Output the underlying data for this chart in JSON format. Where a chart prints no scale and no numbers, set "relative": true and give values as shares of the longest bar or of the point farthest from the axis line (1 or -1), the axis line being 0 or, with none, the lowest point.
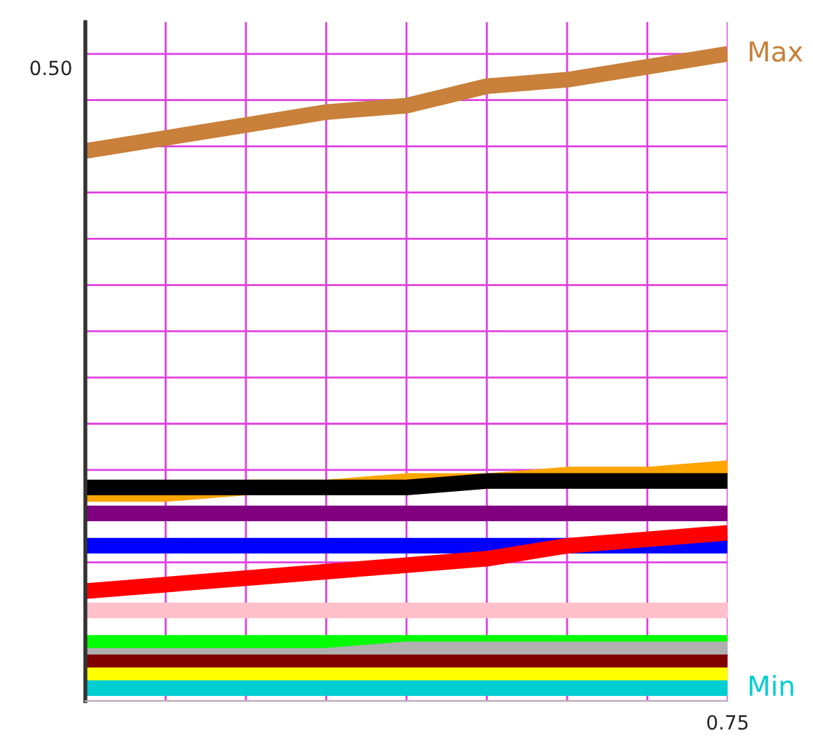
{
  "chart_data": {
    "type": "line",
    "relative": true,
    "grid": true,
    "tick_labels": false,
    "marker": "none",
    "line_style": "solid",
    "categories": [
      null,
      null,
      null,
      null,
      null,
      null,
      null,
      null,
      null
    ],
    "annotations": [
      "0.50",
      "0.75"
    ],
    "series": [
      {
        "name": "Max",
        "color": "#c8803a",
        "values": [
          0.85,
          0.87,
          0.89,
          0.91,
          0.92,
          0.95,
          0.96,
          0.98,
          1.0
        ]
      },
      {
        "color": "#ffa500",
        "values": [
          0.32,
          0.32,
          0.33,
          0.33,
          0.34,
          0.34,
          0.35,
          0.35,
          0.36
        ]
      },
      {
        "color": "#000000",
        "values": [
          0.33,
          0.33,
          0.33,
          0.33,
          0.33,
          0.34,
          0.34,
          0.34,
          0.34
        ]
      },
      {
        "color": "#800080",
        "values": [
          0.29,
          0.29,
          0.29,
          0.29,
          0.29,
          0.29,
          0.29,
          0.29,
          0.29
        ]
      },
      {
        "color": "#0000ff",
        "values": [
          0.24,
          0.24,
          0.24,
          0.24,
          0.24,
          0.24,
          0.24,
          0.24,
          0.24
        ]
      },
      {
        "color": "#ff0000",
        "values": [
          0.17,
          0.18,
          0.19,
          0.2,
          0.21,
          0.22,
          0.24,
          0.25,
          0.26
        ]
      },
      {
        "color": "#ffc0cb",
        "values": [
          0.14,
          0.14,
          0.14,
          0.14,
          0.14,
          0.14,
          0.14,
          0.14,
          0.14
        ]
      },
      {
        "color": "#00ff00",
        "values": [
          0.09,
          0.09,
          0.09,
          0.09,
          0.09,
          0.09,
          0.09,
          0.09,
          0.09
        ]
      },
      {
        "color": "#b0b0b0",
        "values": [
          0.07,
          0.07,
          0.07,
          0.07,
          0.08,
          0.08,
          0.08,
          0.08,
          0.08
        ]
      },
      {
        "color": "#800000",
        "values": [
          0.06,
          0.06,
          0.06,
          0.06,
          0.06,
          0.06,
          0.06,
          0.06,
          0.06
        ]
      },
      {
        "color": "#ffff00",
        "values": [
          0.04,
          0.04,
          0.04,
          0.04,
          0.04,
          0.04,
          0.04,
          0.04,
          0.04
        ]
      },
      {
        "name": "Min",
        "color": "#00ced1",
        "values": [
          0.02,
          0.02,
          0.02,
          0.02,
          0.02,
          0.02,
          0.02,
          0.02,
          0.02
        ]
      }
    ]
  }
}
